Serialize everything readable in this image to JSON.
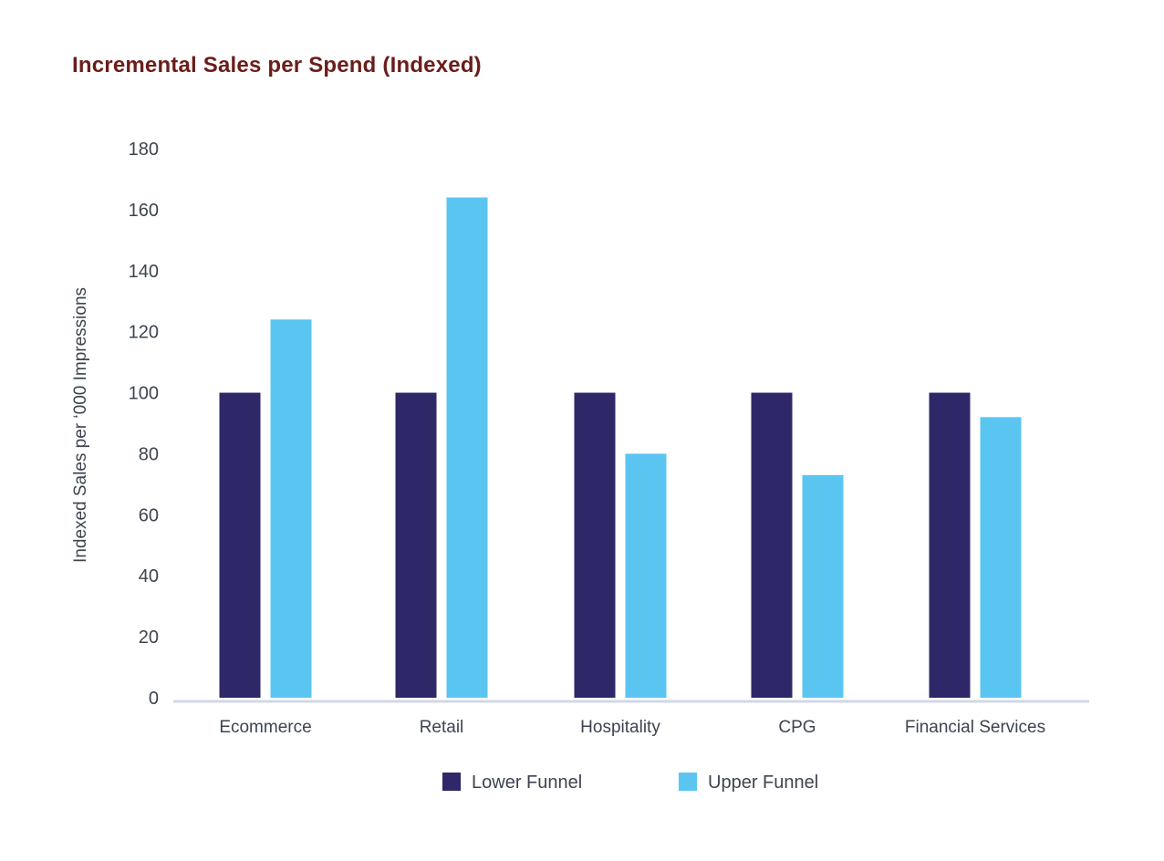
{
  "chart_data": {
    "type": "bar",
    "title": "Incremental Sales per Spend (Indexed)",
    "xlabel": "",
    "ylabel": "Indexed Sales per ‘000 Impressions",
    "categories": [
      "Ecommerce",
      "Retail",
      "Hospitality",
      "CPG",
      "Financial Services"
    ],
    "series": [
      {
        "name": "Lower Funnel",
        "color": "#2e2768",
        "values": [
          100,
          100,
          100,
          100,
          100
        ]
      },
      {
        "name": "Upper Funnel",
        "color": "#5bc5f2",
        "values": [
          124,
          164,
          80,
          73,
          92
        ]
      }
    ],
    "ylim": [
      0,
      180
    ],
    "yticks": [
      0,
      20,
      40,
      60,
      80,
      100,
      120,
      140,
      160,
      180
    ],
    "grid": false,
    "legend_position": "bottom-center"
  }
}
